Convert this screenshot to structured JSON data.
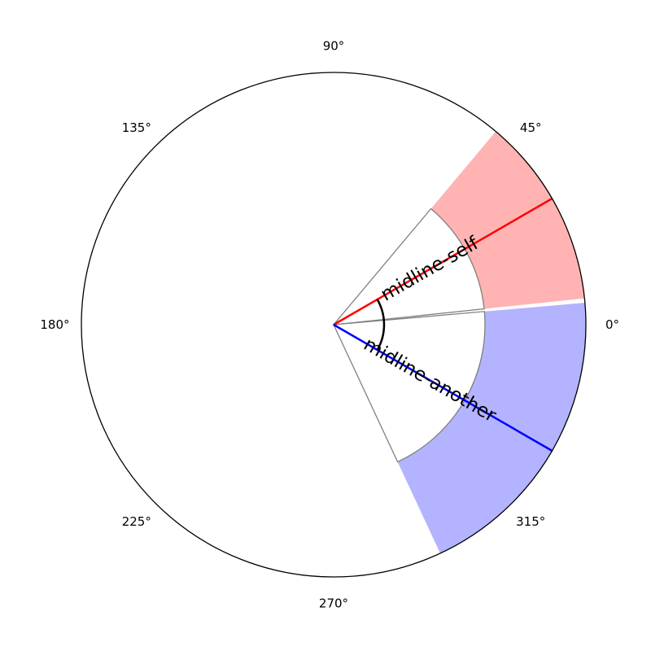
{
  "chart_data": {
    "type": "polar-sector",
    "angle_ticks": [
      {
        "deg": 0,
        "label": "0°"
      },
      {
        "deg": 45,
        "label": "45°"
      },
      {
        "deg": 90,
        "label": "90°"
      },
      {
        "deg": 135,
        "label": "135°"
      },
      {
        "deg": 180,
        "label": "180°"
      },
      {
        "deg": 225,
        "label": "225°"
      },
      {
        "deg": 270,
        "label": "270°"
      },
      {
        "deg": 315,
        "label": "315°"
      }
    ],
    "radial_range": [
      0,
      1
    ],
    "series": [
      {
        "label": "midline-self",
        "color": "#ff0000",
        "fill": "#ffb3b3",
        "midline_deg": 30,
        "outer_wedge": {
          "from_deg": 6,
          "to_deg": 50,
          "r_from": 0.6,
          "r_to": 1.0
        },
        "inner_wedge": {
          "from_deg": 6,
          "to_deg": 50,
          "r_from": 0.0,
          "r_to": 0.6
        }
      },
      {
        "label": "midline-another",
        "color": "#0000ff",
        "fill": "#b3b3ff",
        "midline_deg": -30,
        "outer_wedge": {
          "from_deg": -65,
          "to_deg": 5,
          "r_from": 0.6,
          "r_to": 1.0
        },
        "inner_wedge": {
          "from_deg": -65,
          "to_deg": 5,
          "r_from": 0.0,
          "r_to": 0.6
        }
      }
    ],
    "angle_arc": {
      "from_deg": -30,
      "to_deg": 30,
      "r": 0.2
    }
  }
}
